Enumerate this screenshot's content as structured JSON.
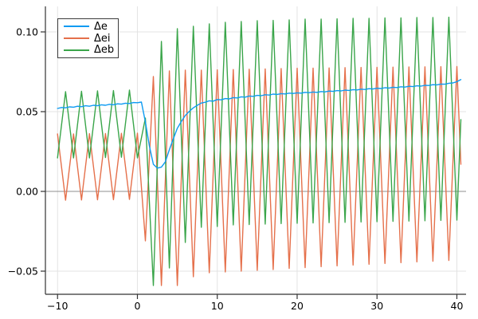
{
  "chart_data": {
    "type": "line",
    "title": "",
    "xlabel": "",
    "ylabel": "",
    "xlim": [
      -11.52,
      41.15
    ],
    "ylim": [
      -0.0645,
      0.116
    ],
    "x_ticks": [
      -10,
      0,
      10,
      20,
      30,
      40
    ],
    "x_tick_labels": [
      "−10",
      "0",
      "10",
      "20",
      "30",
      "40"
    ],
    "y_ticks": [
      -0.05,
      0.0,
      0.05,
      0.1
    ],
    "y_tick_labels": [
      "−0.05",
      "0.00",
      "0.05",
      "0.10"
    ],
    "grid": true,
    "legend_position": "top-left",
    "background_color": "#ffffff",
    "grid_color": "#e3e3e3",
    "zero_line_color": "#8f8f8f",
    "axis_color": "#333333",
    "zero_line_y": 0,
    "series": [
      {
        "name": "Δe",
        "color": "#0d9bf2",
        "points": [
          [
            -10,
            0.052
          ],
          [
            -9.5,
            0.0526
          ],
          [
            -9,
            0.0524
          ],
          [
            -8.5,
            0.053
          ],
          [
            -8,
            0.0528
          ],
          [
            -7.5,
            0.0534
          ],
          [
            -7,
            0.0531
          ],
          [
            -6.5,
            0.0537
          ],
          [
            -6,
            0.0534
          ],
          [
            -5.5,
            0.054
          ],
          [
            -5,
            0.0537
          ],
          [
            -4.5,
            0.0543
          ],
          [
            -4,
            0.054
          ],
          [
            -3.5,
            0.0546
          ],
          [
            -3,
            0.0543
          ],
          [
            -2.5,
            0.0549
          ],
          [
            -2,
            0.0547
          ],
          [
            -1.5,
            0.0553
          ],
          [
            -1,
            0.0551
          ],
          [
            -0.5,
            0.0557
          ],
          [
            0,
            0.0556
          ],
          [
            0.5,
            0.056
          ],
          [
            1,
            0.0435
          ],
          [
            1.5,
            0.0285
          ],
          [
            2,
            0.017
          ],
          [
            2.5,
            0.0146
          ],
          [
            3,
            0.0152
          ],
          [
            3.5,
            0.0186
          ],
          [
            4,
            0.0262
          ],
          [
            4.5,
            0.033
          ],
          [
            5,
            0.0396
          ],
          [
            5.5,
            0.0438
          ],
          [
            6,
            0.0476
          ],
          [
            6.5,
            0.0502
          ],
          [
            7,
            0.0524
          ],
          [
            7.5,
            0.054
          ],
          [
            8,
            0.0554
          ],
          [
            8.5,
            0.0559
          ],
          [
            9,
            0.0568
          ],
          [
            9.5,
            0.0566
          ],
          [
            10,
            0.0576
          ],
          [
            10.5,
            0.0574
          ],
          [
            11,
            0.0582
          ],
          [
            11.5,
            0.058
          ],
          [
            12,
            0.0588
          ],
          [
            12.5,
            0.0586
          ],
          [
            13,
            0.0593
          ],
          [
            13.5,
            0.0591
          ],
          [
            14,
            0.0598
          ],
          [
            14.5,
            0.0596
          ],
          [
            15,
            0.0602
          ],
          [
            15.5,
            0.06
          ],
          [
            16,
            0.0606
          ],
          [
            16.5,
            0.0604
          ],
          [
            17,
            0.061
          ],
          [
            17.5,
            0.0608
          ],
          [
            18,
            0.0613
          ],
          [
            18.5,
            0.0611
          ],
          [
            19,
            0.0616
          ],
          [
            19.5,
            0.0614
          ],
          [
            20,
            0.0618
          ],
          [
            20.5,
            0.0616
          ],
          [
            21,
            0.0621
          ],
          [
            21.5,
            0.0619
          ],
          [
            22,
            0.0623
          ],
          [
            22.5,
            0.0621
          ],
          [
            23,
            0.0626
          ],
          [
            23.5,
            0.0624
          ],
          [
            24,
            0.0629
          ],
          [
            24.5,
            0.0627
          ],
          [
            25,
            0.0632
          ],
          [
            25.5,
            0.063
          ],
          [
            26,
            0.0635
          ],
          [
            26.5,
            0.0633
          ],
          [
            27,
            0.0638
          ],
          [
            27.5,
            0.0636
          ],
          [
            28,
            0.0641
          ],
          [
            28.5,
            0.0639
          ],
          [
            29,
            0.0644
          ],
          [
            29.5,
            0.0642
          ],
          [
            30,
            0.0647
          ],
          [
            30.5,
            0.0645
          ],
          [
            31,
            0.065
          ],
          [
            31.5,
            0.0648
          ],
          [
            32,
            0.0653
          ],
          [
            32.5,
            0.0651
          ],
          [
            33,
            0.0656
          ],
          [
            33.5,
            0.0654
          ],
          [
            34,
            0.0659
          ],
          [
            34.5,
            0.0657
          ],
          [
            35,
            0.0662
          ],
          [
            35.5,
            0.066
          ],
          [
            36,
            0.0665
          ],
          [
            36.5,
            0.0664
          ],
          [
            37,
            0.0669
          ],
          [
            37.5,
            0.0668
          ],
          [
            38,
            0.0673
          ],
          [
            38.5,
            0.0672
          ],
          [
            39,
            0.0678
          ],
          [
            39.5,
            0.068
          ],
          [
            40,
            0.0688
          ],
          [
            40.5,
            0.0701
          ]
        ]
      },
      {
        "name": "Δei",
        "color": "#e5704b",
        "points": [
          [
            -10,
            0.036
          ],
          [
            -9,
            -0.0055
          ],
          [
            -8,
            0.036
          ],
          [
            -7,
            -0.0054
          ],
          [
            -6,
            0.0362
          ],
          [
            -5,
            -0.0053
          ],
          [
            -4,
            0.0363
          ],
          [
            -3,
            -0.0052
          ],
          [
            -2,
            0.0364
          ],
          [
            -1,
            -0.005
          ],
          [
            0,
            0.0365
          ],
          [
            1,
            -0.031
          ],
          [
            2,
            0.072
          ],
          [
            3,
            -0.059
          ],
          [
            4,
            0.0755
          ],
          [
            5,
            -0.059
          ],
          [
            6,
            0.076
          ],
          [
            7,
            -0.0535
          ],
          [
            8,
            0.076
          ],
          [
            9,
            -0.051
          ],
          [
            10,
            0.0762
          ],
          [
            11,
            -0.0505
          ],
          [
            12,
            0.0764
          ],
          [
            13,
            -0.05
          ],
          [
            14,
            0.0766
          ],
          [
            15,
            -0.0495
          ],
          [
            16,
            0.0768
          ],
          [
            17,
            -0.049
          ],
          [
            18,
            0.077
          ],
          [
            19,
            -0.0483
          ],
          [
            20,
            0.0772
          ],
          [
            21,
            -0.0478
          ],
          [
            22,
            0.0773
          ],
          [
            23,
            -0.0472
          ],
          [
            24,
            0.0774
          ],
          [
            25,
            -0.0467
          ],
          [
            26,
            0.0776
          ],
          [
            27,
            -0.0462
          ],
          [
            28,
            0.0777
          ],
          [
            29,
            -0.0457
          ],
          [
            30,
            0.0778
          ],
          [
            31,
            -0.0452
          ],
          [
            32,
            0.0779
          ],
          [
            33,
            -0.0447
          ],
          [
            34,
            0.078
          ],
          [
            35,
            -0.0442
          ],
          [
            36,
            0.0781
          ],
          [
            37,
            -0.0438
          ],
          [
            38,
            0.0782
          ],
          [
            39,
            -0.0433
          ],
          [
            40,
            0.0783
          ],
          [
            40.5,
            0.017
          ]
        ]
      },
      {
        "name": "Δeb",
        "color": "#3aa54a",
        "points": [
          [
            -10,
            0.021
          ],
          [
            -9,
            0.0625
          ],
          [
            -8,
            0.021
          ],
          [
            -7,
            0.0628
          ],
          [
            -6,
            0.021
          ],
          [
            -5,
            0.063
          ],
          [
            -4,
            0.0212
          ],
          [
            -3,
            0.0632
          ],
          [
            -2,
            0.0214
          ],
          [
            -1,
            0.0635
          ],
          [
            0,
            0.021
          ],
          [
            1,
            0.046
          ],
          [
            2,
            -0.059
          ],
          [
            3,
            0.094
          ],
          [
            4,
            -0.048
          ],
          [
            5,
            0.102
          ],
          [
            6,
            -0.032
          ],
          [
            7,
            0.1035
          ],
          [
            8,
            -0.0225
          ],
          [
            9,
            0.105
          ],
          [
            10,
            -0.022
          ],
          [
            11,
            0.106
          ],
          [
            12,
            -0.021
          ],
          [
            13,
            0.1065
          ],
          [
            14,
            -0.0208
          ],
          [
            15,
            0.107
          ],
          [
            16,
            -0.0205
          ],
          [
            17,
            0.1072
          ],
          [
            18,
            -0.0202
          ],
          [
            19,
            0.1075
          ],
          [
            20,
            -0.02
          ],
          [
            21,
            0.108
          ],
          [
            22,
            -0.0198
          ],
          [
            23,
            0.108
          ],
          [
            24,
            -0.0196
          ],
          [
            25,
            0.1082
          ],
          [
            26,
            -0.0194
          ],
          [
            27,
            0.1085
          ],
          [
            28,
            -0.0192
          ],
          [
            29,
            0.1085
          ],
          [
            30,
            -0.019
          ],
          [
            31,
            0.1088
          ],
          [
            32,
            -0.0188
          ],
          [
            33,
            0.1088
          ],
          [
            34,
            -0.0186
          ],
          [
            35,
            0.109
          ],
          [
            36,
            -0.0184
          ],
          [
            37,
            0.109
          ],
          [
            38,
            -0.0182
          ],
          [
            39,
            0.1092
          ],
          [
            40,
            -0.018
          ],
          [
            40.5,
            0.045
          ]
        ]
      }
    ]
  }
}
